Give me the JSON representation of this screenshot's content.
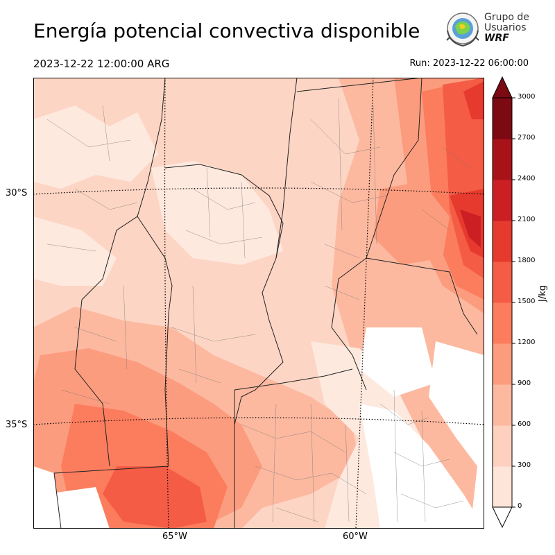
{
  "title": "Energía potencial convectiva disponible",
  "valid_time": "2023-12-22 12:00:00 ARG",
  "run_time": "Run: 2023-12-22 06:00:00",
  "logo": {
    "line1": "Grupo de",
    "line2": "Usuarios",
    "line3": "WRF"
  },
  "map": {
    "lat_labels": [
      "30°S",
      "35°S"
    ],
    "lon_labels": [
      "65°W",
      "60°W"
    ]
  },
  "colorbar": {
    "unit": "J/kg",
    "ticks": [
      "0",
      "300",
      "600",
      "900",
      "1200",
      "1500",
      "1800",
      "2100",
      "2400",
      "2700",
      "3000"
    ],
    "colors": [
      "#fee5d9",
      "#fdd0bf",
      "#fcb9a0",
      "#fc9c7e",
      "#fb7d5e",
      "#f45c45",
      "#e63a2f",
      "#cc1f24",
      "#a81319",
      "#7c0a13"
    ],
    "extend": "both"
  }
}
